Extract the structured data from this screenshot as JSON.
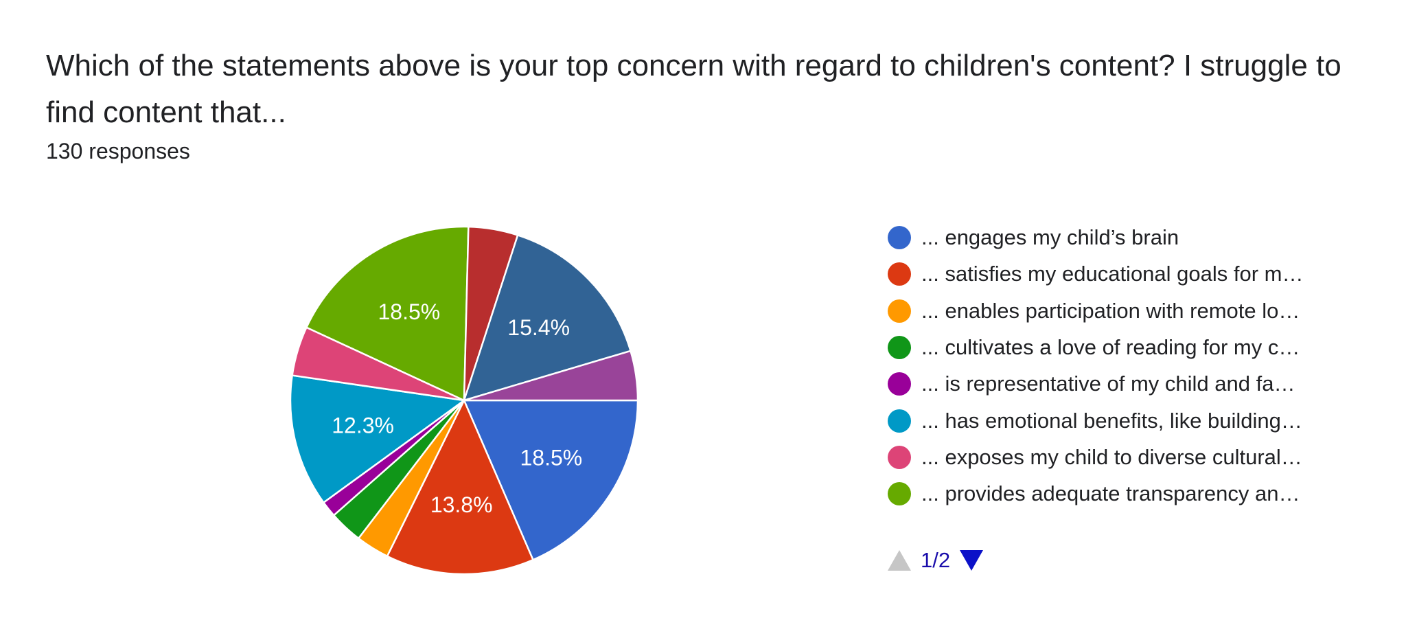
{
  "title": "Which of the statements above is your top concern with regard to children's content? I struggle to find content that...",
  "responses": "130 responses",
  "pager": {
    "label": "1/2",
    "prev_icon": "triangle-up-icon",
    "next_icon": "triangle-down-icon"
  },
  "legend": [
    {
      "label": "... engages my child’s brain",
      "color": "#3366cc"
    },
    {
      "label": "... satisfies my educational goals for m…",
      "color": "#dc3912"
    },
    {
      "label": "... enables participation with remote lo…",
      "color": "#ff9900"
    },
    {
      "label": "... cultivates a love of reading for my c…",
      "color": "#109618"
    },
    {
      "label": "... is representative of my child and fa…",
      "color": "#990099"
    },
    {
      "label": "... has emotional benefits, like building…",
      "color": "#0099c6"
    },
    {
      "label": "... exposes my child to diverse cultural…",
      "color": "#dd4477"
    },
    {
      "label": "... provides adequate transparency an…",
      "color": "#66aa00"
    }
  ],
  "chart_data": {
    "type": "pie",
    "title": "Which of the statements above is your top concern with regard to children's content? I struggle to find content that...",
    "total_responses": 130,
    "start_angle_deg": 90,
    "direction": "clockwise",
    "slices": [
      {
        "value": 18.5,
        "label": "18.5%",
        "color": "#3366cc"
      },
      {
        "value": 13.8,
        "label": "13.8%",
        "color": "#dc3912"
      },
      {
        "value": 3.1,
        "label": "",
        "color": "#ff9900"
      },
      {
        "value": 3.1,
        "label": "",
        "color": "#109618"
      },
      {
        "value": 1.5,
        "label": "",
        "color": "#990099"
      },
      {
        "value": 12.3,
        "label": "12.3%",
        "color": "#0099c6"
      },
      {
        "value": 4.6,
        "label": "",
        "color": "#dd4477"
      },
      {
        "value": 18.5,
        "label": "18.5%",
        "color": "#66aa00"
      },
      {
        "value": 4.6,
        "label": "",
        "color": "#b82e2e"
      },
      {
        "value": 15.4,
        "label": "15.4%",
        "color": "#316395"
      },
      {
        "value": 4.6,
        "label": "",
        "color": "#994499"
      }
    ]
  }
}
